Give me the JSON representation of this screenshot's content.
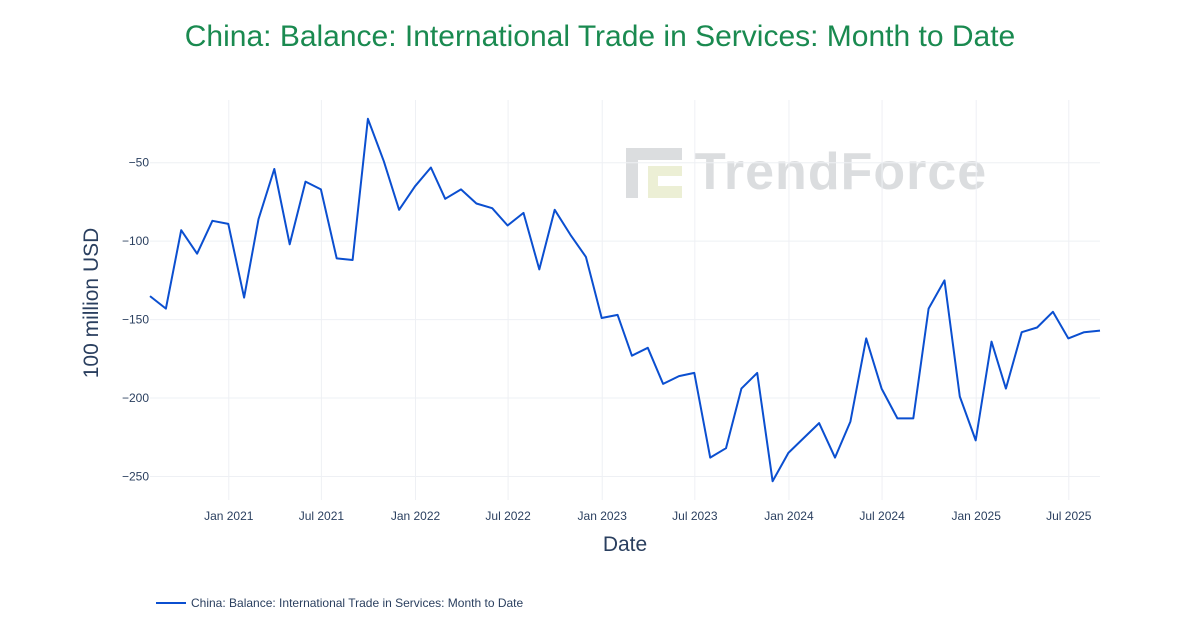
{
  "title": "China: Balance: International Trade in Services: Month to Date",
  "watermark": "TrendForce",
  "colors": {
    "title": "#1a8a50",
    "line": "#0b4fd0",
    "grid": "#eef0f4",
    "text": "#2a3f5f"
  },
  "chart_data": {
    "type": "line",
    "xlabel": "Date",
    "ylabel": "100 million USD",
    "x_ticks": [
      {
        "date": "2021-01-01",
        "label": "Jan 2021"
      },
      {
        "date": "2021-07-01",
        "label": "Jul 2021"
      },
      {
        "date": "2022-01-01",
        "label": "Jan 2022"
      },
      {
        "date": "2022-07-01",
        "label": "Jul 2022"
      },
      {
        "date": "2023-01-01",
        "label": "Jan 2023"
      },
      {
        "date": "2023-07-01",
        "label": "Jul 2023"
      },
      {
        "date": "2024-01-01",
        "label": "Jan 2024"
      },
      {
        "date": "2024-07-01",
        "label": "Jul 2024"
      },
      {
        "date": "2025-01-01",
        "label": "Jan 2025"
      },
      {
        "date": "2025-07-01",
        "label": "Jul 2025"
      }
    ],
    "y_ticks": [
      {
        "value": -50,
        "label": "−50"
      },
      {
        "value": -100,
        "label": "−100"
      },
      {
        "value": -150,
        "label": "−150"
      },
      {
        "value": -200,
        "label": "−200"
      },
      {
        "value": -250,
        "label": "−250"
      }
    ],
    "xlim": [
      "2020-07-31",
      "2025-08-31"
    ],
    "ylim": [
      -265,
      -10
    ],
    "grid": true,
    "legend_position": "bottom-left",
    "series": [
      {
        "name": "China: Balance: International Trade in Services: Month to Date",
        "x": [
          "2020-07-31",
          "2020-08-31",
          "2020-09-30",
          "2020-10-31",
          "2020-11-30",
          "2020-12-31",
          "2021-01-31",
          "2021-02-28",
          "2021-03-31",
          "2021-04-30",
          "2021-05-31",
          "2021-06-30",
          "2021-07-31",
          "2021-08-31",
          "2021-09-30",
          "2021-10-31",
          "2021-11-30",
          "2021-12-31",
          "2022-01-31",
          "2022-02-28",
          "2022-03-31",
          "2022-04-30",
          "2022-05-31",
          "2022-06-30",
          "2022-07-31",
          "2022-08-31",
          "2022-09-30",
          "2022-10-31",
          "2022-11-30",
          "2022-12-31",
          "2023-01-31",
          "2023-02-28",
          "2023-03-31",
          "2023-04-30",
          "2023-05-31",
          "2023-06-30",
          "2023-07-31",
          "2023-08-31",
          "2023-09-30",
          "2023-10-31",
          "2023-11-30",
          "2023-12-31",
          "2024-02-29",
          "2024-03-31",
          "2024-04-30",
          "2024-05-31",
          "2024-06-30",
          "2024-07-31",
          "2024-08-31",
          "2024-09-30",
          "2024-10-31",
          "2024-11-30",
          "2024-12-31",
          "2025-01-31",
          "2025-02-28",
          "2025-03-31",
          "2025-04-30",
          "2025-05-31",
          "2025-06-30",
          "2025-07-31",
          "2025-08-31"
        ],
        "y": [
          -135,
          -143,
          -93,
          -108,
          -87,
          -89,
          -136,
          -86,
          -54,
          -102,
          -62,
          -67,
          -111,
          -112,
          -22,
          -49,
          -80,
          -65,
          -53,
          -73,
          -67,
          -76,
          -79,
          -90,
          -82,
          -118,
          -80,
          -96,
          -110,
          -149,
          -147,
          -173,
          -168,
          -191,
          -186,
          -184,
          -238,
          -232,
          -194,
          -184,
          -253,
          -235,
          -216,
          -238,
          -215,
          -162,
          -194,
          -213,
          -213,
          -143,
          -125,
          -199,
          -227,
          -164,
          -194,
          -158,
          -155,
          -145,
          -162,
          -158,
          -157
        ]
      }
    ]
  }
}
